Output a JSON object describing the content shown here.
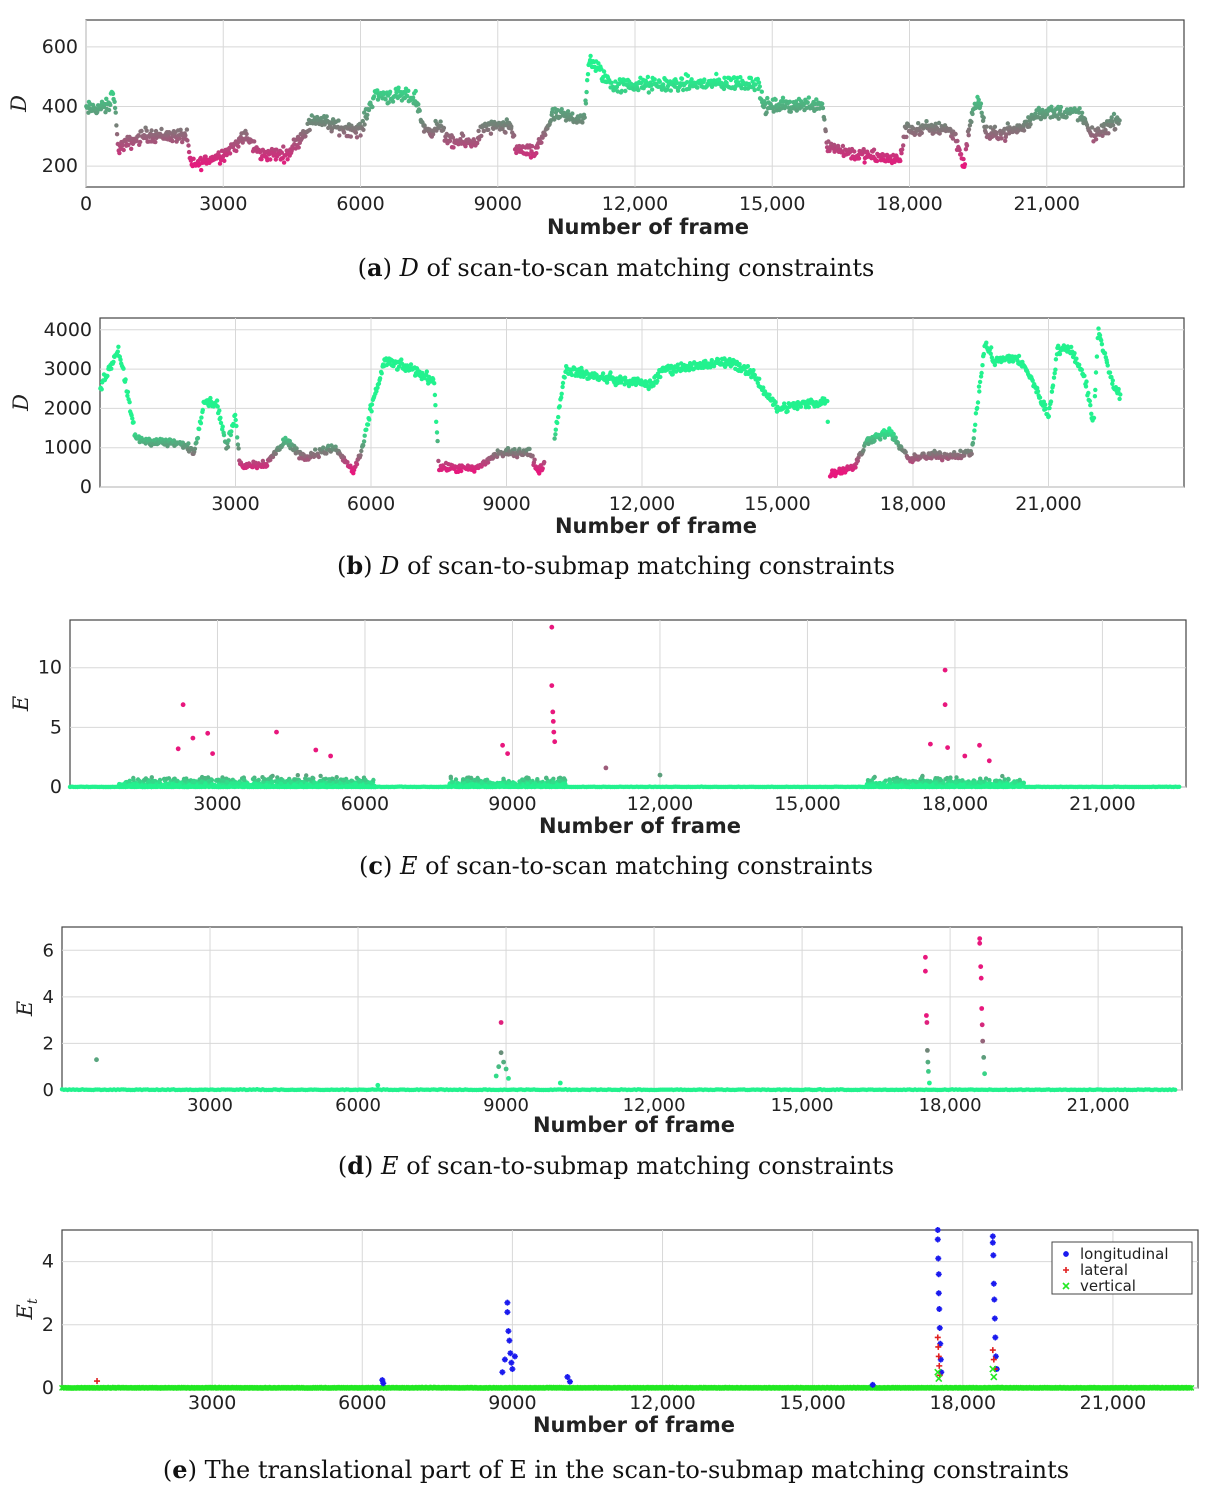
{
  "colors": {
    "high": "#22f28e",
    "mid": "#6b8a78",
    "low": "#e8177d",
    "blue": "#1a1aee",
    "red": "#e02020",
    "green": "#22e822",
    "grid": "#d8d8d8",
    "axis": "#444444"
  },
  "chart_data": [
    {
      "id": "a",
      "type": "scatter",
      "title_letter": "a",
      "title_symbol": "D",
      "title_text": "of scan-to-scan matching constraints",
      "xlabel": "Number of frame",
      "ylabel": "D",
      "xlim": [
        0,
        24000
      ],
      "ylim": [
        130,
        690
      ],
      "xticks": [
        0,
        3000,
        6000,
        9000,
        12000,
        15000,
        18000,
        21000
      ],
      "xtick_labels": [
        "0",
        "3000",
        "6000",
        "9000",
        "12,000",
        "15,000",
        "18,000",
        "21,000"
      ],
      "yticks": [
        200,
        400,
        600
      ],
      "ytick_labels": [
        "200",
        "400",
        "600"
      ],
      "color_range": [
        200,
        500
      ],
      "segments": [
        [
          0,
          390
        ],
        [
          500,
          400
        ],
        [
          600,
          460
        ],
        [
          700,
          260
        ],
        [
          1300,
          305
        ],
        [
          2200,
          300
        ],
        [
          2300,
          200
        ],
        [
          3000,
          240
        ],
        [
          3500,
          300
        ],
        [
          3800,
          240
        ],
        [
          4400,
          240
        ],
        [
          4700,
          300
        ],
        [
          5000,
          360
        ],
        [
          5500,
          330
        ],
        [
          6000,
          320
        ],
        [
          6300,
          440
        ],
        [
          7200,
          430
        ],
        [
          7400,
          320
        ],
        [
          7800,
          330
        ],
        [
          7900,
          280
        ],
        [
          8500,
          280
        ],
        [
          8700,
          330
        ],
        [
          9300,
          330
        ],
        [
          9400,
          260
        ],
        [
          9800,
          240
        ],
        [
          10200,
          370
        ],
        [
          10900,
          360
        ],
        [
          11000,
          560
        ],
        [
          11500,
          470
        ],
        [
          14700,
          480
        ],
        [
          14800,
          400
        ],
        [
          16100,
          410
        ],
        [
          16200,
          270
        ],
        [
          16800,
          240
        ],
        [
          17800,
          220
        ],
        [
          17900,
          320
        ],
        [
          18800,
          330
        ],
        [
          19000,
          300
        ],
        [
          19200,
          200
        ],
        [
          19300,
          330
        ],
        [
          19500,
          430
        ],
        [
          19700,
          300
        ],
        [
          20500,
          330
        ],
        [
          20800,
          380
        ],
        [
          21700,
          380
        ],
        [
          22000,
          300
        ],
        [
          22600,
          360
        ]
      ],
      "noise": 28,
      "count": 1500,
      "spikes": []
    },
    {
      "id": "b",
      "type": "scatter",
      "title_letter": "b",
      "title_symbol": "D",
      "title_text": "of scan-to-submap matching constraints",
      "xlabel": "Number of frame",
      "ylabel": "D",
      "xlim": [
        0,
        24000
      ],
      "ylim": [
        0,
        4300
      ],
      "xticks": [
        3000,
        6000,
        9000,
        12000,
        15000,
        18000,
        21000
      ],
      "xtick_labels": [
        "3000",
        "6000",
        "9000",
        "12,000",
        "15,000",
        "18,000",
        "21,000"
      ],
      "yticks": [
        0,
        1000,
        2000,
        3000,
        4000
      ],
      "ytick_labels": [
        "0",
        "1000",
        "2000",
        "3000",
        "4000"
      ],
      "color_range": [
        400,
        1500
      ],
      "segments": [
        [
          0,
          2500
        ],
        [
          400,
          3500
        ],
        [
          500,
          3000
        ],
        [
          800,
          1200
        ],
        [
          1800,
          1100
        ],
        [
          2100,
          900
        ],
        [
          2300,
          2200
        ],
        [
          2600,
          2100
        ],
        [
          2800,
          1000
        ],
        [
          3000,
          1800
        ],
        [
          3100,
          550
        ],
        [
          3700,
          600
        ],
        [
          4100,
          1200
        ],
        [
          4500,
          750
        ],
        [
          5200,
          1000
        ],
        [
          5600,
          400
        ],
        [
          5800,
          900
        ],
        [
          6000,
          2000
        ],
        [
          6300,
          3200
        ],
        [
          6900,
          3000
        ],
        [
          7400,
          2700
        ],
        [
          7500,
          500
        ],
        [
          8300,
          450
        ],
        [
          8800,
          850
        ],
        [
          9500,
          900
        ],
        [
          9700,
          400
        ],
        [
          10000,
          800
        ],
        [
          10300,
          3000
        ],
        [
          11000,
          2800
        ],
        [
          12200,
          2600
        ],
        [
          12500,
          3000
        ],
        [
          13400,
          3100
        ],
        [
          14000,
          3200
        ],
        [
          14500,
          2800
        ],
        [
          15000,
          2000
        ],
        [
          16100,
          2200
        ],
        [
          16150,
          350
        ],
        [
          16700,
          500
        ],
        [
          17000,
          1200
        ],
        [
          17500,
          1400
        ],
        [
          17900,
          700
        ],
        [
          18400,
          800
        ],
        [
          19000,
          800
        ],
        [
          19300,
          900
        ],
        [
          19600,
          3700
        ],
        [
          19800,
          3200
        ],
        [
          20300,
          3300
        ],
        [
          20600,
          2800
        ],
        [
          21000,
          1800
        ],
        [
          21200,
          3500
        ],
        [
          21500,
          3500
        ],
        [
          21800,
          2800
        ],
        [
          22000,
          1600
        ],
        [
          22100,
          4000
        ],
        [
          22400,
          2700
        ],
        [
          22600,
          2300
        ]
      ],
      "gaps": [
        [
          9850,
          10050
        ],
        [
          16120,
          16150
        ]
      ],
      "noise": 140,
      "count": 1400,
      "spikes": []
    },
    {
      "id": "c",
      "type": "scatter",
      "title_letter": "c",
      "title_symbol": "E",
      "title_text": "of scan-to-scan matching constraints",
      "xlabel": "Number of frame",
      "ylabel": "E",
      "xlim": [
        0,
        22700
      ],
      "ylim": [
        0,
        14
      ],
      "xticks": [
        3000,
        6000,
        9000,
        12000,
        15000,
        18000,
        21000
      ],
      "xtick_labels": [
        "3000",
        "6000",
        "9000",
        "12,000",
        "15,000",
        "18,000",
        "21,000"
      ],
      "yticks": [
        0,
        5,
        10
      ],
      "ytick_labels": [
        "0",
        "5",
        "10"
      ],
      "color_range": [
        0.2,
        2.2
      ],
      "bands": [
        [
          1000,
          6200,
          1.1
        ],
        [
          7700,
          10100,
          1.0
        ],
        [
          16200,
          19400,
          1.0
        ]
      ],
      "spikes": [
        [
          2300,
          6.9
        ],
        [
          2200,
          3.2
        ],
        [
          2500,
          4.1
        ],
        [
          2800,
          4.5
        ],
        [
          4200,
          4.6
        ],
        [
          2900,
          2.8
        ],
        [
          5000,
          3.1
        ],
        [
          5300,
          2.6
        ],
        [
          8800,
          3.5
        ],
        [
          8900,
          2.8
        ],
        [
          9800,
          13.4
        ],
        [
          9800,
          8.5
        ],
        [
          9820,
          6.3
        ],
        [
          9830,
          5.5
        ],
        [
          9840,
          4.6
        ],
        [
          9860,
          3.8
        ],
        [
          10900,
          1.6
        ],
        [
          12000,
          1.0
        ],
        [
          17500,
          3.6
        ],
        [
          17800,
          9.8
        ],
        [
          17800,
          6.9
        ],
        [
          17850,
          3.3
        ],
        [
          18200,
          2.6
        ],
        [
          18500,
          3.5
        ],
        [
          18700,
          2.2
        ]
      ],
      "count": 0
    },
    {
      "id": "d",
      "type": "scatter",
      "title_letter": "d",
      "title_symbol": "E",
      "title_text": "of scan-to-submap matching constraints",
      "xlabel": "Number of frame",
      "ylabel": "E",
      "xlim": [
        0,
        22700
      ],
      "ylim": [
        0,
        7
      ],
      "xticks": [
        3000,
        6000,
        9000,
        12000,
        15000,
        18000,
        21000
      ],
      "xtick_labels": [
        "3000",
        "6000",
        "9000",
        "12,000",
        "15,000",
        "18,000",
        "21,000"
      ],
      "yticks": [
        0,
        2,
        4,
        6
      ],
      "ytick_labels": [
        "0",
        "2",
        "4",
        "6"
      ],
      "color_range": [
        0.3,
        3.0
      ],
      "bands": [],
      "spikes": [
        [
          700,
          1.3
        ],
        [
          6400,
          0.2
        ],
        [
          8800,
          0.6
        ],
        [
          8850,
          1.0
        ],
        [
          8900,
          2.9
        ],
        [
          8900,
          1.6
        ],
        [
          8950,
          1.2
        ],
        [
          9000,
          0.9
        ],
        [
          9050,
          0.5
        ],
        [
          10100,
          0.3
        ],
        [
          17500,
          5.7
        ],
        [
          17500,
          5.1
        ],
        [
          17520,
          3.2
        ],
        [
          17530,
          2.9
        ],
        [
          17540,
          1.7
        ],
        [
          17550,
          1.2
        ],
        [
          17560,
          0.8
        ],
        [
          17580,
          0.3
        ],
        [
          18600,
          6.5
        ],
        [
          18600,
          6.3
        ],
        [
          18620,
          5.3
        ],
        [
          18630,
          4.8
        ],
        [
          18640,
          3.5
        ],
        [
          18650,
          2.8
        ],
        [
          18660,
          2.1
        ],
        [
          18680,
          1.4
        ],
        [
          18700,
          0.7
        ]
      ],
      "count": 0
    },
    {
      "id": "e",
      "type": "scatter",
      "title_letter": "e",
      "title_text": "The translational part of E in the scan-to-submap matching constraints",
      "xlabel": "Number of frame",
      "ylabel": "E_t",
      "xlim": [
        0,
        22700
      ],
      "ylim": [
        0,
        5
      ],
      "xticks": [
        3000,
        6000,
        9000,
        12000,
        15000,
        18000,
        21000
      ],
      "xtick_labels": [
        "3000",
        "6000",
        "9000",
        "12,000",
        "15,000",
        "18,000",
        "21,000"
      ],
      "yticks": [
        0,
        2,
        4
      ],
      "ytick_labels": [
        "0",
        "2",
        "4"
      ],
      "legend": {
        "position": "top-right",
        "entries": [
          "longitudinal",
          "lateral",
          "vertical"
        ]
      },
      "series": [
        {
          "name": "longitudinal",
          "marker": "*",
          "points": [
            [
              6400,
              0.25
            ],
            [
              6420,
              0.15
            ],
            [
              8800,
              0.5
            ],
            [
              8850,
              0.9
            ],
            [
              8900,
              2.7
            ],
            [
              8900,
              2.4
            ],
            [
              8920,
              1.8
            ],
            [
              8940,
              1.5
            ],
            [
              8960,
              1.1
            ],
            [
              8980,
              0.8
            ],
            [
              9000,
              0.6
            ],
            [
              9050,
              1.0
            ],
            [
              10100,
              0.35
            ],
            [
              10150,
              0.2
            ],
            [
              16200,
              0.1
            ],
            [
              17500,
              5.0
            ],
            [
              17500,
              4.7
            ],
            [
              17510,
              4.1
            ],
            [
              17520,
              3.6
            ],
            [
              17520,
              3.0
            ],
            [
              17530,
              2.5
            ],
            [
              17540,
              1.9
            ],
            [
              17550,
              1.4
            ],
            [
              17560,
              0.9
            ],
            [
              17570,
              0.5
            ],
            [
              18600,
              4.8
            ],
            [
              18600,
              4.6
            ],
            [
              18610,
              4.2
            ],
            [
              18620,
              3.3
            ],
            [
              18630,
              2.8
            ],
            [
              18640,
              2.2
            ],
            [
              18650,
              1.6
            ],
            [
              18660,
              1.0
            ],
            [
              18680,
              0.6
            ]
          ]
        },
        {
          "name": "lateral",
          "marker": "+",
          "points": [
            [
              700,
              0.22
            ],
            [
              17500,
              1.6
            ],
            [
              17510,
              1.3
            ],
            [
              17520,
              1.0
            ],
            [
              17530,
              0.7
            ],
            [
              17540,
              0.4
            ],
            [
              18600,
              1.2
            ],
            [
              18620,
              0.9
            ],
            [
              18640,
              0.6
            ]
          ]
        },
        {
          "name": "vertical",
          "marker": "x",
          "points": [
            [
              17500,
              0.5
            ],
            [
              17520,
              0.3
            ],
            [
              18600,
              0.6
            ],
            [
              18620,
              0.35
            ]
          ]
        }
      ]
    }
  ]
}
